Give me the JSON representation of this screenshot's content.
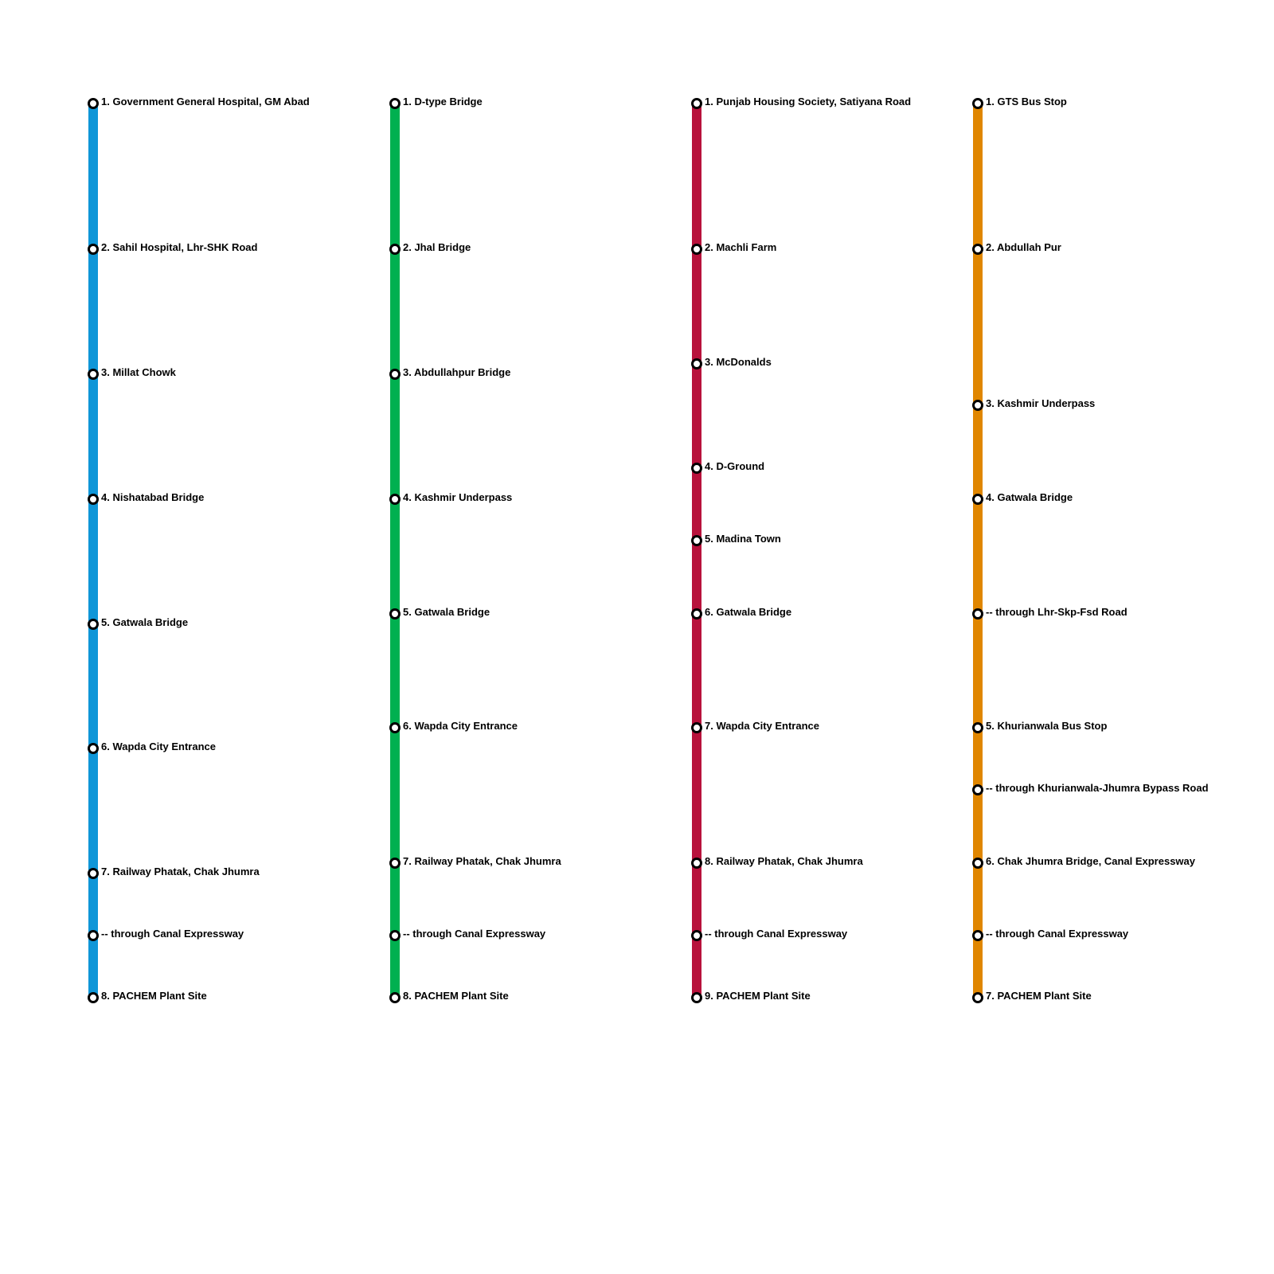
{
  "routes": [
    {
      "color": "#0f96d8",
      "stops": [
        "1. Government General Hospital, GM Abad",
        "2. Sahil Hospital, Lhr-SHK Road",
        "3. Millat Chowk",
        "4. Nishatabad Bridge",
        "5. Gatwala Bridge",
        "6. Wapda City Entrance",
        "7. Railway Phatak, Chak Jhumra",
        "-- through Canal Expressway",
        "8. PACHEM Plant Site"
      ]
    },
    {
      "color": "#00b050",
      "stops": [
        "1. D-type Bridge",
        "2. Jhal Bridge",
        "3. Abdullahpur Bridge",
        "4. Kashmir Underpass",
        "5. Gatwala Bridge",
        "6. Wapda City Entrance",
        "7. Railway Phatak, Chak Jhumra",
        "-- through Canal Expressway",
        "8. PACHEM Plant Site"
      ]
    },
    {
      "color": "#b8123c",
      "stops": [
        "1. Punjab Housing Society, Satiyana Road",
        "2. Machli Farm",
        "3. McDonalds",
        "4. D-Ground",
        "5. Madina Town",
        "6. Gatwala Bridge",
        "7. Wapda City Entrance",
        "8. Railway Phatak, Chak Jhumra",
        "-- through Canal Expressway",
        "9. PACHEM Plant Site"
      ]
    },
    {
      "color": "#e08600",
      "stops": [
        "1. GTS Bus Stop",
        "2. Abdullah Pur",
        "3. Kashmir Underpass",
        "4. Gatwala Bridge",
        "-- through Lhr-Skp-Fsd Road",
        "5. Khurianwala Bus Stop",
        "-- through Khurianwala-Jhumra Bypass Road",
        "6. Chak Jhumra Bridge, Canal Expressway",
        "-- through Canal Expressway",
        "7. PACHEM Plant Site"
      ]
    }
  ]
}
